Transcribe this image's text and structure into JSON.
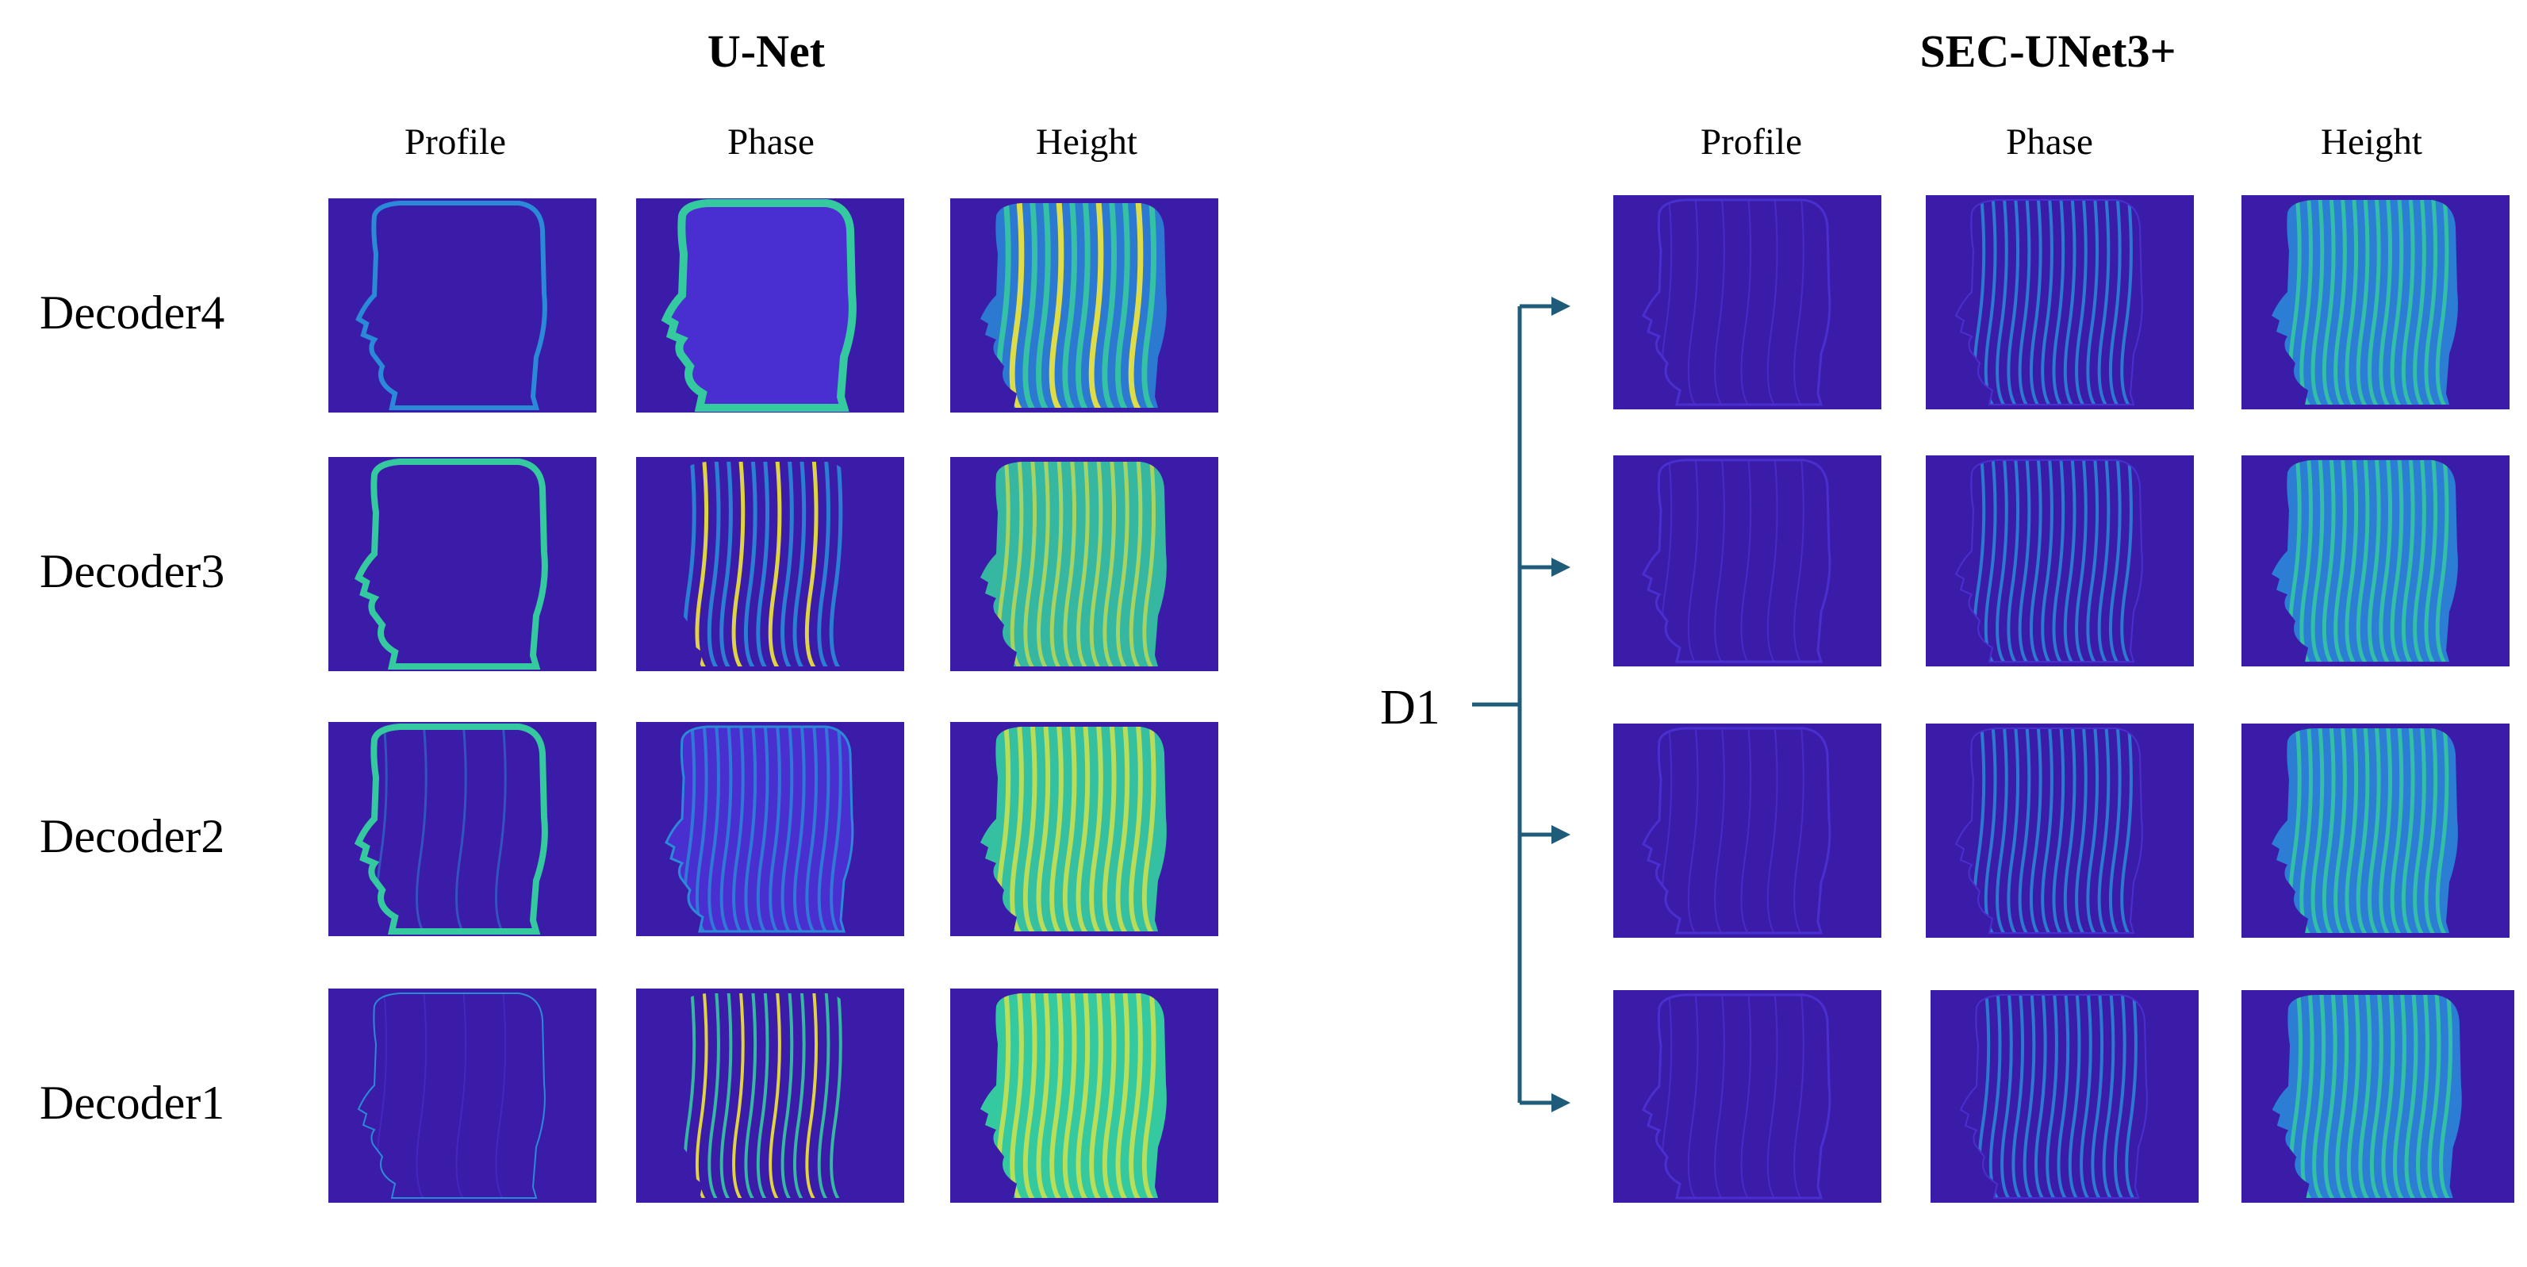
{
  "left_panel": {
    "title": "U-Net",
    "columns": [
      "Profile",
      "Phase",
      "Height"
    ],
    "rows": [
      "Decoder4",
      "Decoder3",
      "Decoder2",
      "Decoder1"
    ]
  },
  "right_panel": {
    "title": "SEC-UNet3+",
    "columns": [
      "Profile",
      "Phase",
      "Height"
    ],
    "branch_label": "D1"
  },
  "colors": {
    "background": "#3b1ca8",
    "low": "#4a2fd0",
    "mid": "#2a8ad8",
    "high": "#35c9a0",
    "peak": "#f2e83a",
    "arrow": "#1f5c7a"
  }
}
